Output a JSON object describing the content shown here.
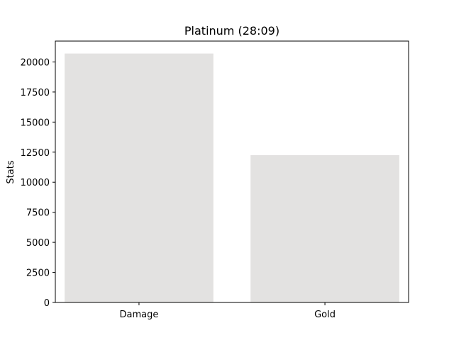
{
  "chart_data": {
    "type": "bar",
    "title": "Platinum (28:09)",
    "xlabel": "",
    "ylabel": "Stats",
    "categories": [
      "Damage",
      "Gold"
    ],
    "values": [
      20700,
      12250
    ],
    "ylim": [
      0,
      21735
    ],
    "yticks": [
      0,
      2500,
      5000,
      7500,
      10000,
      12500,
      15000,
      17500,
      20000
    ],
    "grid": false,
    "bar_color": "#e3e2e1"
  }
}
